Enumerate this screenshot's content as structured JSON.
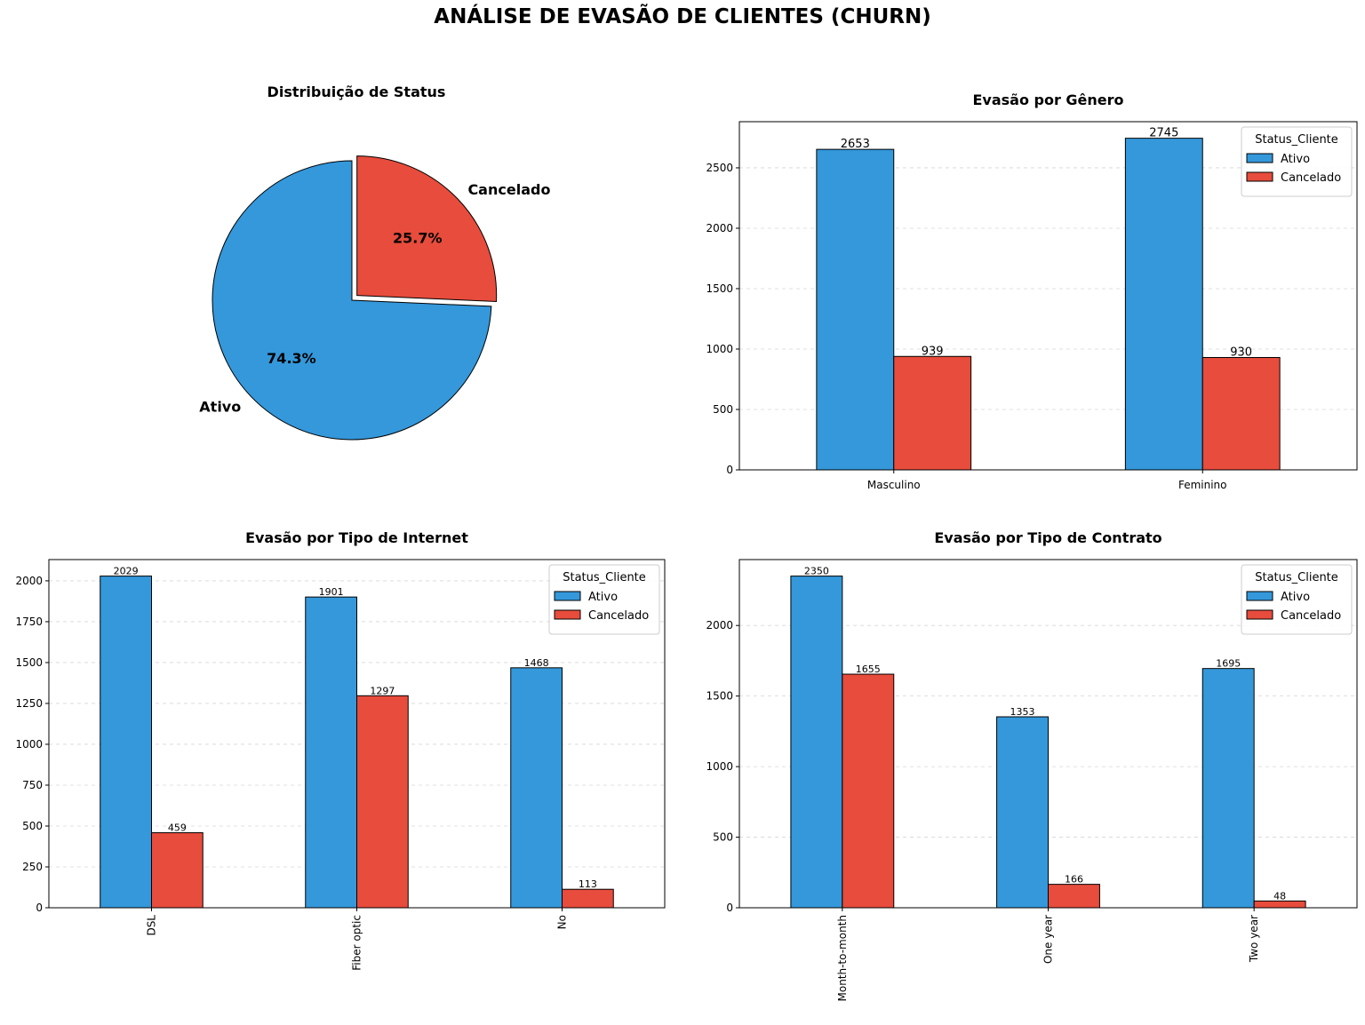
{
  "title": "ANÁLISE DE EVASÃO DE CLIENTES (CHURN)",
  "colors": {
    "ativo": "#3498db",
    "cancelado": "#e74c3c",
    "edge": "#000000",
    "grid": "#cccccc"
  },
  "chart_data": [
    {
      "type": "pie",
      "title": "Distribuição de Status",
      "labels": [
        "Ativo",
        "Cancelado"
      ],
      "values": [
        74.3,
        25.7
      ],
      "pct_labels": [
        "74.3%",
        "25.7%"
      ],
      "explode": [
        0,
        0.05
      ],
      "start_angle": 90
    },
    {
      "type": "bar",
      "title": "Evasão por Gênero",
      "categories": [
        "Masculino",
        "Feminino"
      ],
      "series": [
        {
          "name": "Ativo",
          "values": [
            2653,
            2745
          ]
        },
        {
          "name": "Cancelado",
          "values": [
            939,
            930
          ]
        }
      ],
      "yticks": [
        0,
        500,
        1000,
        1500,
        2000,
        2500
      ],
      "ylim": [
        0,
        2882
      ],
      "legend_title": "Status_Cliente",
      "legend": "top-right",
      "grid": "y-dashed",
      "xtick_rotation": 0
    },
    {
      "type": "bar",
      "title": "Evasão por Tipo de Internet",
      "categories": [
        "DSL",
        "Fiber optic",
        "No"
      ],
      "series": [
        {
          "name": "Ativo",
          "values": [
            2029,
            1901,
            1468
          ]
        },
        {
          "name": "Cancelado",
          "values": [
            459,
            1297,
            113
          ]
        }
      ],
      "yticks": [
        0,
        250,
        500,
        750,
        1000,
        1250,
        1500,
        1750,
        2000
      ],
      "ylim": [
        0,
        2130
      ],
      "legend_title": "Status_Cliente",
      "legend": "top-right",
      "grid": "y-dashed",
      "xtick_rotation": 90
    },
    {
      "type": "bar",
      "title": "Evasão por Tipo de Contrato",
      "categories": [
        "Month-to-month",
        "One year",
        "Two year"
      ],
      "series": [
        {
          "name": "Ativo",
          "values": [
            2350,
            1353,
            1695
          ]
        },
        {
          "name": "Cancelado",
          "values": [
            1655,
            166,
            48
          ]
        }
      ],
      "yticks": [
        0,
        500,
        1000,
        1500,
        2000
      ],
      "ylim": [
        0,
        2467
      ],
      "legend_title": "Status_Cliente",
      "legend": "top-right",
      "grid": "y-dashed",
      "xtick_rotation": 90
    }
  ]
}
